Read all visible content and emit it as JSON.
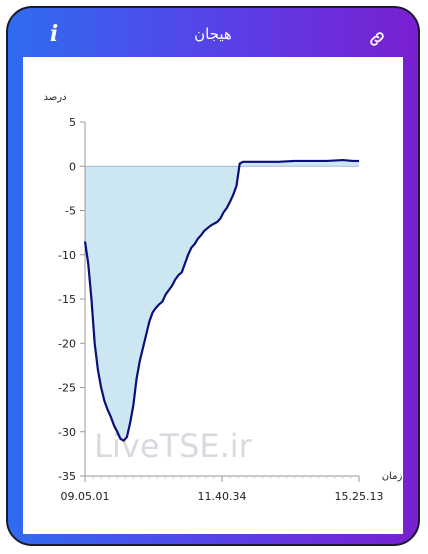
{
  "header": {
    "title": "هیجان",
    "info_icon": "info-icon",
    "link_icon": "link-icon"
  },
  "colors": {
    "frame_gradient_start": "#2f6cf0",
    "frame_gradient_end": "#7a1fd0",
    "line": "#0a0f7a",
    "area": "#cce6f2"
  },
  "watermark": "LiveTSE.ir",
  "chart_data": {
    "type": "area",
    "ylabel": "درصد",
    "xlabel": "زمان",
    "ylim": [
      -35,
      5
    ],
    "yticks": [
      5,
      0,
      -5,
      -10,
      -15,
      -20,
      -25,
      -30,
      -35
    ],
    "xtick_labels": [
      "09.05.01",
      "11.40.34",
      "15.25.13"
    ],
    "legend": "none",
    "grid": false,
    "series": [
      {
        "values": [
          [
            0,
            -8.5
          ],
          [
            2,
            -11
          ],
          [
            4,
            -15
          ],
          [
            6,
            -20
          ],
          [
            8,
            -23
          ],
          [
            10,
            -25
          ],
          [
            12,
            -26.5
          ],
          [
            14,
            -27.5
          ],
          [
            16,
            -28.3
          ],
          [
            18,
            -29.3
          ],
          [
            20,
            -30
          ],
          [
            22,
            -30.8
          ],
          [
            24,
            -31
          ],
          [
            26,
            -30.6
          ],
          [
            28,
            -29
          ],
          [
            30,
            -27
          ],
          [
            32,
            -24
          ],
          [
            34,
            -22
          ],
          [
            36,
            -20.5
          ],
          [
            38,
            -19
          ],
          [
            40,
            -17.5
          ],
          [
            42,
            -16.5
          ],
          [
            44,
            -16
          ],
          [
            46,
            -15.6
          ],
          [
            48,
            -15.3
          ],
          [
            50,
            -14.5
          ],
          [
            52,
            -14
          ],
          [
            54,
            -13.5
          ],
          [
            56,
            -12.8
          ],
          [
            58,
            -12.3
          ],
          [
            60,
            -12
          ],
          [
            62,
            -11
          ],
          [
            64,
            -10
          ],
          [
            66,
            -9.2
          ],
          [
            68,
            -8.8
          ],
          [
            70,
            -8.2
          ],
          [
            72,
            -7.8
          ],
          [
            74,
            -7.3
          ],
          [
            76,
            -7
          ],
          [
            78,
            -6.7
          ],
          [
            80,
            -6.5
          ],
          [
            82,
            -6.3
          ],
          [
            84,
            -5.9
          ],
          [
            86,
            -5.2
          ],
          [
            88,
            -4.7
          ],
          [
            90,
            -4
          ],
          [
            92,
            -3.2
          ],
          [
            94,
            -2.2
          ],
          [
            96,
            0.3
          ],
          [
            98,
            0.5
          ],
          [
            100,
            0.5
          ],
          [
            110,
            0.5
          ],
          [
            120,
            0.5
          ],
          [
            130,
            0.6
          ],
          [
            140,
            0.6
          ],
          [
            150,
            0.6
          ],
          [
            160,
            0.7
          ],
          [
            166,
            0.6
          ],
          [
            170,
            0.6
          ]
        ]
      }
    ]
  }
}
